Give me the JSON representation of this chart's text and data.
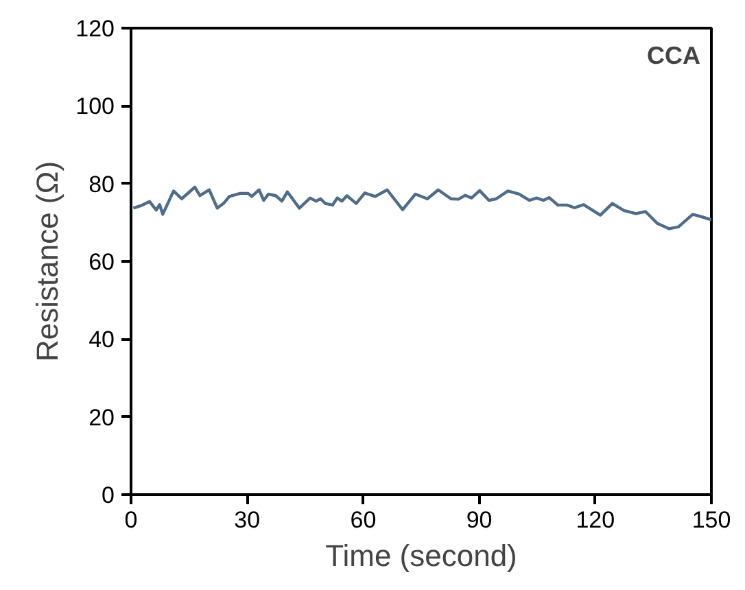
{
  "chart_data": {
    "type": "line",
    "xlabel": "Time (second)",
    "ylabel": "Resistance (Ω)",
    "annotations": [
      "CCA"
    ],
    "xlim": [
      0,
      150
    ],
    "xticks": [
      0,
      30,
      60,
      90,
      120,
      150
    ],
    "ylim": [
      0,
      120
    ],
    "yticks": [
      0,
      20,
      40,
      60,
      80,
      100,
      120
    ],
    "line_style": "solid",
    "series": [
      {
        "color": "#4f6d8a",
        "x": [
          0.6,
          2.5,
          4.8,
          6.5,
          7.4,
          8.2,
          11,
          13.1,
          16.5,
          17.8,
          20.2,
          22.3,
          23.9,
          25.4,
          28.2,
          30.2,
          31.2,
          33.1,
          34.3,
          35.5,
          37.4,
          39,
          40.4,
          43.5,
          46.3,
          47.8,
          49,
          50.2,
          52.1,
          53.3,
          54.5,
          55.8,
          58.2,
          60.4,
          63.1,
          66.2,
          70.2,
          73.5,
          76.6,
          79.4,
          82.7,
          84.6,
          86.4,
          88,
          90.1,
          92.5,
          94.4,
          97.4,
          100.3,
          103,
          104.8,
          106.6,
          108.1,
          110.3,
          112.7,
          114.6,
          117,
          121.3,
          124.4,
          127.4,
          130.5,
          133,
          136,
          139.1,
          141.5,
          145.2,
          147.7,
          150
        ],
        "values": [
          73.7,
          74.3,
          75.4,
          73.2,
          74.6,
          72.1,
          78.1,
          76.1,
          79.1,
          76.9,
          78.4,
          73.7,
          74.9,
          76.7,
          77.5,
          77.5,
          76.7,
          78.4,
          75.7,
          77.3,
          76.9,
          75.5,
          77.9,
          73.7,
          76.3,
          75.5,
          76.1,
          74.9,
          74.5,
          76.3,
          75.5,
          76.9,
          74.9,
          77.6,
          76.7,
          78.4,
          73.3,
          77.3,
          76.1,
          78.4,
          76.1,
          76.0,
          77.0,
          76.3,
          78.2,
          75.7,
          76.1,
          78.1,
          77.3,
          75.7,
          76.3,
          75.7,
          76.4,
          74.5,
          74.5,
          73.8,
          74.6,
          71.9,
          74.9,
          73.1,
          72.3,
          72.8,
          69.8,
          68.4,
          68.9,
          72.1,
          71.4,
          70.7
        ]
      }
    ]
  }
}
